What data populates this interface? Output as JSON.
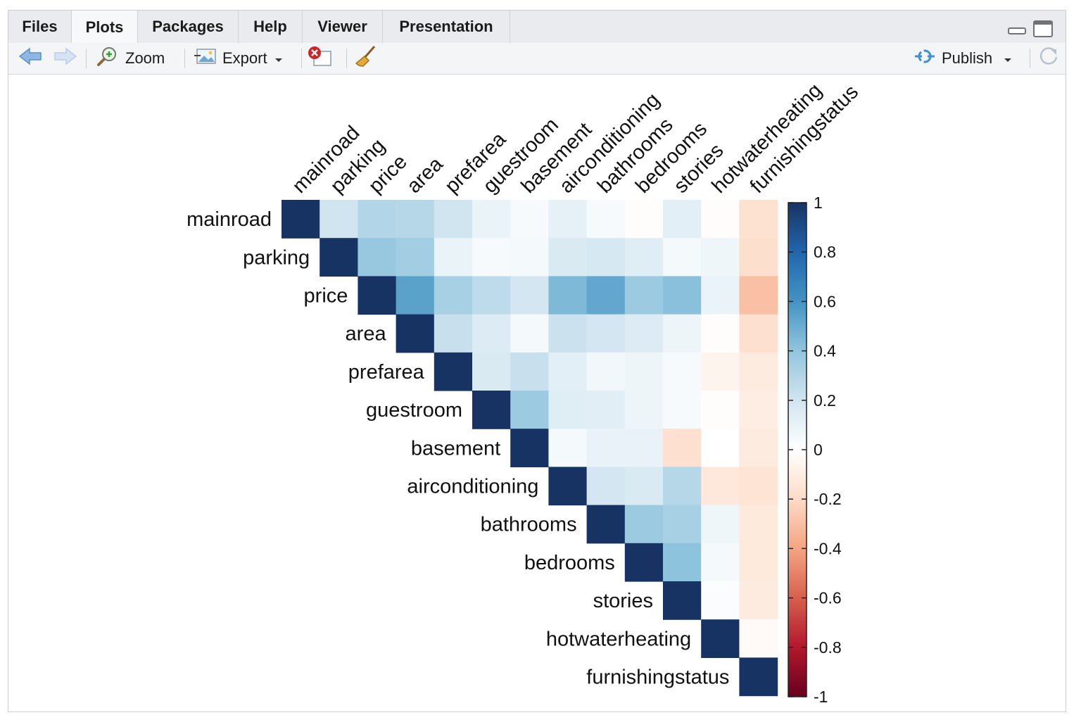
{
  "tabs": [
    {
      "label": "Files",
      "active": false
    },
    {
      "label": "Plots",
      "active": true
    },
    {
      "label": "Packages",
      "active": false
    },
    {
      "label": "Help",
      "active": false
    },
    {
      "label": "Viewer",
      "active": false
    },
    {
      "label": "Presentation",
      "active": false
    }
  ],
  "toolbar": {
    "zoom_label": "Zoom",
    "export_label": "Export",
    "publish_label": "Publish"
  },
  "icons": {
    "back": "arrow-left-icon",
    "forward": "arrow-right-icon",
    "zoom": "magnifier-icon",
    "export": "image-export-icon",
    "remove": "remove-plot-icon",
    "clear": "broom-icon",
    "publish": "publish-icon",
    "refresh": "refresh-icon",
    "minimize": "minimize-icon",
    "maximize": "maximize-icon"
  },
  "colors": {
    "strong_positive": "#173363",
    "neutral": "#ffffff",
    "strong_negative": "#67001f"
  },
  "chart_data": {
    "type": "heatmap",
    "variables": [
      "mainroad",
      "parking",
      "price",
      "area",
      "prefarea",
      "guestroom",
      "basement",
      "airconditioning",
      "bathrooms",
      "bedrooms",
      "stories",
      "hotwaterheating",
      "furnishingstatus"
    ],
    "layout": "upper-triangle",
    "matrix": [
      [
        1.0,
        0.2,
        0.3,
        0.29,
        0.2,
        0.09,
        0.04,
        0.11,
        0.04,
        -0.01,
        0.12,
        -0.01,
        -0.16
      ],
      [
        null,
        1.0,
        0.38,
        0.35,
        0.09,
        0.04,
        0.05,
        0.16,
        0.18,
        0.14,
        0.05,
        0.07,
        -0.18
      ],
      [
        null,
        null,
        1.0,
        0.54,
        0.33,
        0.26,
        0.19,
        0.45,
        0.52,
        0.37,
        0.42,
        0.09,
        -0.3
      ],
      [
        null,
        null,
        null,
        1.0,
        0.23,
        0.15,
        0.05,
        0.22,
        0.19,
        0.15,
        0.08,
        -0.01,
        -0.17
      ],
      [
        null,
        null,
        null,
        null,
        1.0,
        0.16,
        0.23,
        0.12,
        0.06,
        0.08,
        0.04,
        -0.06,
        -0.11
      ],
      [
        null,
        null,
        null,
        null,
        null,
        1.0,
        0.37,
        0.14,
        0.13,
        0.08,
        0.04,
        -0.01,
        -0.1
      ],
      [
        null,
        null,
        null,
        null,
        null,
        null,
        1.0,
        0.05,
        0.1,
        0.1,
        -0.17,
        0.0,
        -0.11
      ],
      [
        null,
        null,
        null,
        null,
        null,
        null,
        null,
        1.0,
        0.19,
        0.16,
        0.29,
        -0.13,
        -0.15
      ],
      [
        null,
        null,
        null,
        null,
        null,
        null,
        null,
        null,
        1.0,
        0.37,
        0.33,
        0.07,
        -0.12
      ],
      [
        null,
        null,
        null,
        null,
        null,
        null,
        null,
        null,
        null,
        1.0,
        0.41,
        0.05,
        -0.12
      ],
      [
        null,
        null,
        null,
        null,
        null,
        null,
        null,
        null,
        null,
        null,
        1.0,
        0.02,
        -0.11
      ],
      [
        null,
        null,
        null,
        null,
        null,
        null,
        null,
        null,
        null,
        null,
        null,
        1.0,
        -0.03
      ],
      [
        null,
        null,
        null,
        null,
        null,
        null,
        null,
        null,
        null,
        null,
        null,
        null,
        1.0
      ]
    ],
    "colorbar": {
      "range": [
        -1,
        1
      ],
      "ticks": [
        "1",
        "0.8",
        "0.6",
        "0.4",
        "0.2",
        "0",
        "-0.2",
        "-0.4",
        "-0.6",
        "-0.8",
        "-1"
      ]
    }
  }
}
